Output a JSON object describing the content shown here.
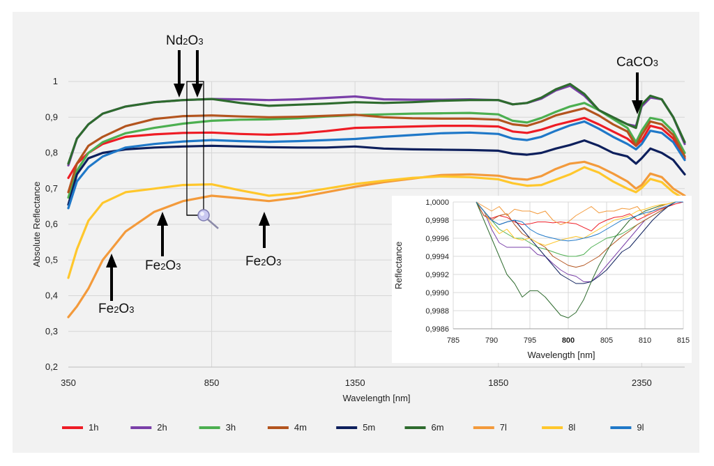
{
  "chart_data": [
    {
      "type": "line",
      "title": "",
      "xlabel": "Wavelength [nm]",
      "ylabel": "Absolute Reflectance",
      "xlim": [
        350,
        2500
      ],
      "ylim": [
        0.2,
        1.0
      ],
      "x_ticks": [
        "350",
        "850",
        "1350",
        "1850",
        "2350"
      ],
      "x_tick_values": [
        350,
        850,
        1350,
        1850,
        2350
      ],
      "y_ticks": [
        "0,2",
        "0,3",
        "0,4",
        "0,5",
        "0,6",
        "0,7",
        "0,8",
        "0,9",
        "1"
      ],
      "y_tick_values": [
        0.2,
        0.3,
        0.4,
        0.5,
        0.6,
        0.7,
        0.8,
        0.9,
        1.0
      ],
      "grid": true,
      "legend_position": "bottom",
      "x": [
        350,
        380,
        420,
        470,
        550,
        650,
        750,
        850,
        950,
        1050,
        1150,
        1250,
        1350,
        1450,
        1550,
        1650,
        1750,
        1850,
        1900,
        1950,
        2000,
        2050,
        2100,
        2150,
        2200,
        2250,
        2300,
        2330,
        2350,
        2380,
        2420,
        2460,
        2500
      ],
      "series": [
        {
          "name": "1h",
          "color": "#ee1c25",
          "values": [
            0.73,
            0.77,
            0.8,
            0.825,
            0.845,
            0.852,
            0.856,
            0.857,
            0.853,
            0.851,
            0.854,
            0.861,
            0.87,
            0.872,
            0.874,
            0.876,
            0.876,
            0.874,
            0.86,
            0.856,
            0.865,
            0.878,
            0.888,
            0.898,
            0.88,
            0.86,
            0.84,
            0.82,
            0.835,
            0.876,
            0.868,
            0.84,
            0.785
          ]
        },
        {
          "name": "2h",
          "color": "#7a3fa8",
          "values": [
            0.765,
            0.84,
            0.88,
            0.91,
            0.93,
            0.942,
            0.948,
            0.951,
            0.95,
            0.948,
            0.95,
            0.954,
            0.958,
            0.95,
            0.949,
            0.949,
            0.95,
            0.948,
            0.936,
            0.94,
            0.952,
            0.975,
            0.988,
            0.96,
            0.92,
            0.9,
            0.88,
            0.875,
            0.93,
            0.955,
            0.95,
            0.9,
            0.825
          ]
        },
        {
          "name": "3h",
          "color": "#4caf50",
          "values": [
            0.675,
            0.75,
            0.8,
            0.83,
            0.855,
            0.87,
            0.882,
            0.89,
            0.893,
            0.894,
            0.897,
            0.902,
            0.906,
            0.908,
            0.91,
            0.911,
            0.912,
            0.908,
            0.89,
            0.885,
            0.898,
            0.915,
            0.93,
            0.94,
            0.92,
            0.895,
            0.87,
            0.83,
            0.862,
            0.898,
            0.892,
            0.86,
            0.8
          ]
        },
        {
          "name": "4m",
          "color": "#b3541e",
          "values": [
            0.69,
            0.77,
            0.82,
            0.845,
            0.875,
            0.895,
            0.903,
            0.905,
            0.902,
            0.9,
            0.901,
            0.904,
            0.907,
            0.9,
            0.897,
            0.896,
            0.896,
            0.893,
            0.88,
            0.876,
            0.888,
            0.905,
            0.915,
            0.925,
            0.905,
            0.88,
            0.86,
            0.82,
            0.85,
            0.888,
            0.88,
            0.85,
            0.79
          ]
        },
        {
          "name": "5m",
          "color": "#0d1f5c",
          "values": [
            0.655,
            0.74,
            0.785,
            0.8,
            0.81,
            0.815,
            0.818,
            0.82,
            0.818,
            0.816,
            0.815,
            0.815,
            0.818,
            0.812,
            0.81,
            0.809,
            0.808,
            0.806,
            0.798,
            0.795,
            0.8,
            0.812,
            0.822,
            0.835,
            0.82,
            0.8,
            0.79,
            0.77,
            0.785,
            0.812,
            0.8,
            0.78,
            0.74
          ]
        },
        {
          "name": "6m",
          "color": "#2e6b2e",
          "values": [
            0.77,
            0.84,
            0.88,
            0.91,
            0.93,
            0.942,
            0.948,
            0.951,
            0.94,
            0.932,
            0.935,
            0.938,
            0.942,
            0.94,
            0.942,
            0.946,
            0.948,
            0.948,
            0.936,
            0.94,
            0.955,
            0.978,
            0.993,
            0.965,
            0.92,
            0.9,
            0.88,
            0.87,
            0.935,
            0.96,
            0.95,
            0.9,
            0.83
          ]
        },
        {
          "name": "7l",
          "color": "#f39a3b",
          "values": [
            0.34,
            0.37,
            0.42,
            0.5,
            0.58,
            0.635,
            0.665,
            0.68,
            0.673,
            0.665,
            0.675,
            0.69,
            0.705,
            0.718,
            0.728,
            0.738,
            0.74,
            0.736,
            0.728,
            0.725,
            0.735,
            0.755,
            0.77,
            0.775,
            0.762,
            0.742,
            0.72,
            0.7,
            0.71,
            0.742,
            0.732,
            0.7,
            0.68
          ]
        },
        {
          "name": "8l",
          "color": "#ffc72c",
          "values": [
            0.45,
            0.53,
            0.61,
            0.66,
            0.69,
            0.7,
            0.71,
            0.712,
            0.695,
            0.68,
            0.687,
            0.7,
            0.713,
            0.722,
            0.73,
            0.734,
            0.732,
            0.726,
            0.715,
            0.708,
            0.71,
            0.725,
            0.74,
            0.76,
            0.745,
            0.72,
            0.7,
            0.69,
            0.702,
            0.727,
            0.718,
            0.69,
            0.67
          ]
        },
        {
          "name": "9l",
          "color": "#1f78c8",
          "values": [
            0.645,
            0.72,
            0.76,
            0.79,
            0.815,
            0.825,
            0.832,
            0.836,
            0.833,
            0.831,
            0.833,
            0.836,
            0.839,
            0.845,
            0.85,
            0.855,
            0.857,
            0.853,
            0.84,
            0.836,
            0.845,
            0.862,
            0.877,
            0.888,
            0.868,
            0.845,
            0.825,
            0.81,
            0.825,
            0.862,
            0.856,
            0.83,
            0.78
          ]
        }
      ],
      "annotations": [
        {
          "text": "Nd2O3",
          "x": 790,
          "y": 1.03
        },
        {
          "text": "CaCO3",
          "x": 2330,
          "y": 1.03
        },
        {
          "text": "Fe2O3",
          "x": 500,
          "y": 0.36
        },
        {
          "text": "Fe2O3",
          "x": 680,
          "y": 0.49
        },
        {
          "text": "Fe2O3",
          "x": 1000,
          "y": 0.51
        }
      ]
    },
    {
      "type": "line",
      "title": "",
      "xlabel": "Wavelength [nm]",
      "ylabel": "Reflectance",
      "xlim": [
        785,
        815
      ],
      "ylim": [
        0.9986,
        1.0
      ],
      "x_ticks": [
        "785",
        "790",
        "795",
        "800",
        "805",
        "810",
        "815"
      ],
      "x_tick_values": [
        785,
        790,
        795,
        800,
        805,
        810,
        815
      ],
      "y_ticks": [
        "0,9986",
        "0,9988",
        "0,9990",
        "0,9992",
        "0,9994",
        "0,9996",
        "0,9998",
        "1,0000"
      ],
      "y_tick_values": [
        0.9986,
        0.9988,
        0.999,
        0.9992,
        0.9994,
        0.9996,
        0.9998,
        1.0
      ],
      "grid": true,
      "x": [
        788,
        789,
        790,
        791,
        792,
        793,
        794,
        795,
        796,
        797,
        798,
        799,
        800,
        801,
        802,
        803,
        804,
        805,
        806,
        807,
        808,
        809,
        810,
        811,
        812,
        813,
        814,
        815
      ],
      "series": [
        {
          "name": "1h",
          "color": "#ee1c25",
          "values": [
            1.0,
            0.99985,
            0.99982,
            0.99985,
            0.99983,
            0.99978,
            0.99975,
            0.99976,
            0.99978,
            0.99978,
            0.99977,
            0.99978,
            0.99977,
            0.99976,
            0.99972,
            0.99968,
            0.99976,
            0.9998,
            0.99983,
            0.99984,
            0.99987,
            0.9998,
            0.99984,
            0.99988,
            0.99992,
            0.99995,
            0.99998,
            1.0
          ]
        },
        {
          "name": "2h",
          "color": "#7a3fa8",
          "values": [
            1.0,
            0.9999,
            0.9997,
            0.99955,
            0.9995,
            0.9995,
            0.9995,
            0.9995,
            0.99942,
            0.9994,
            0.99932,
            0.99925,
            0.9992,
            0.99918,
            0.99912,
            0.99912,
            0.9992,
            0.9993,
            0.9994,
            0.9995,
            0.9996,
            0.9997,
            0.9998,
            0.99985,
            0.9999,
            0.99995,
            1.0,
            1.0
          ]
        },
        {
          "name": "3h",
          "color": "#4caf50",
          "values": [
            1.0,
            0.9999,
            0.9998,
            0.9997,
            0.99965,
            0.9996,
            0.9996,
            0.99955,
            0.9995,
            0.99948,
            0.99945,
            0.99942,
            0.9994,
            0.9994,
            0.99942,
            0.9995,
            0.99955,
            0.9996,
            0.99962,
            0.99965,
            0.9997,
            0.99975,
            0.9998,
            0.99985,
            0.9999,
            0.99995,
            1.0,
            1.0
          ]
        },
        {
          "name": "4m",
          "color": "#b3541e",
          "values": [
            1.0,
            0.99985,
            0.9998,
            0.99985,
            0.99987,
            0.99975,
            0.99965,
            0.9996,
            0.99955,
            0.9995,
            0.9994,
            0.99935,
            0.9993,
            0.99928,
            0.9993,
            0.99935,
            0.9994,
            0.99948,
            0.99955,
            0.99962,
            0.99968,
            0.99975,
            0.9998,
            0.99985,
            0.9999,
            0.99995,
            1.0,
            1.0
          ]
        },
        {
          "name": "5m",
          "color": "#0d1f5c",
          "values": [
            1.0,
            0.9999,
            0.9998,
            0.99975,
            0.99978,
            0.9998,
            0.9997,
            0.9996,
            0.9995,
            0.9994,
            0.9993,
            0.9992,
            0.99915,
            0.9991,
            0.9991,
            0.99912,
            0.99918,
            0.99925,
            0.99935,
            0.99945,
            0.9995,
            0.9996,
            0.9997,
            0.9998,
            0.99988,
            0.99995,
            1.0,
            1.0
          ]
        },
        {
          "name": "6m",
          "color": "#2e6b2e",
          "values": [
            1.0,
            0.9998,
            0.9996,
            0.9994,
            0.9992,
            0.9991,
            0.99895,
            0.99902,
            0.99902,
            0.99895,
            0.99885,
            0.99875,
            0.99872,
            0.99878,
            0.99892,
            0.99912,
            0.9993,
            0.99945,
            0.9996,
            0.9997,
            0.9998,
            0.99985,
            0.9999,
            0.99993,
            0.99996,
            0.99998,
            1.0,
            1.0
          ]
        },
        {
          "name": "7l",
          "color": "#f39a3b",
          "values": [
            1.0,
            0.99995,
            0.9999,
            0.99995,
            0.99985,
            0.99992,
            0.9999,
            0.9999,
            0.99987,
            0.9999,
            0.9998,
            0.99975,
            0.99978,
            0.99985,
            0.9999,
            0.99995,
            0.99988,
            0.9999,
            0.9999,
            0.99993,
            0.99992,
            0.99995,
            0.99985,
            0.9999,
            0.99995,
            0.99998,
            1.0,
            1.0
          ]
        },
        {
          "name": "8l",
          "color": "#ffc72c",
          "values": [
            1.0,
            0.9999,
            0.99975,
            0.99965,
            0.9997,
            0.9996,
            0.99958,
            0.9996,
            0.99955,
            0.99952,
            0.99955,
            0.99958,
            0.9996,
            0.99962,
            0.9996,
            0.99965,
            0.9997,
            0.99975,
            0.9998,
            0.99982,
            0.99985,
            0.9999,
            0.99992,
            0.99995,
            0.99997,
            0.99998,
            1.0,
            1.0
          ]
        },
        {
          "name": "9l",
          "color": "#1f78c8",
          "values": [
            1.0,
            0.9999,
            0.9998,
            0.99975,
            0.99978,
            0.9998,
            0.99978,
            0.9997,
            0.99965,
            0.99962,
            0.9996,
            0.99958,
            0.99957,
            0.99958,
            0.9996,
            0.99962,
            0.99965,
            0.9997,
            0.99975,
            0.9998,
            0.99982,
            0.99985,
            0.99988,
            0.9999,
            0.99993,
            0.99996,
            1.0,
            1.0
          ]
        }
      ]
    }
  ],
  "legend": [
    {
      "label": "1h",
      "color": "#ee1c25"
    },
    {
      "label": "2h",
      "color": "#7a3fa8"
    },
    {
      "label": "3h",
      "color": "#4caf50"
    },
    {
      "label": "4m",
      "color": "#b3541e"
    },
    {
      "label": "5m",
      "color": "#0d1f5c"
    },
    {
      "label": "6m",
      "color": "#2e6b2e"
    },
    {
      "label": "7l",
      "color": "#f39a3b"
    },
    {
      "label": "8l",
      "color": "#ffc72c"
    },
    {
      "label": "9l",
      "color": "#1f78c8"
    }
  ],
  "annotation_labels": {
    "nd": {
      "base": "Nd",
      "sub1": "2",
      "mid": "O",
      "sub2": "3"
    },
    "caco": {
      "base": "CaCO",
      "sub1": "3"
    },
    "fe": {
      "base": "Fe",
      "sub1": "2",
      "mid": "O",
      "sub2": "3"
    }
  },
  "inset_highlight_tick": "800",
  "zoom_icon": "magnifier-icon"
}
